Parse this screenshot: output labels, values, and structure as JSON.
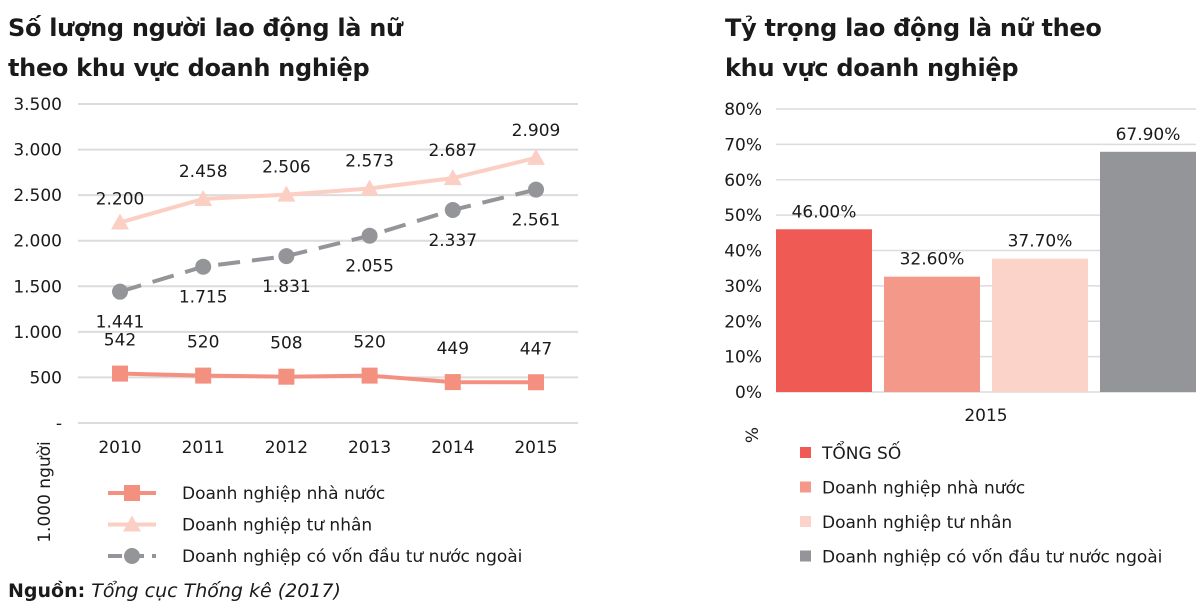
{
  "left_title": [
    "Số lượng người lao động là nữ",
    "theo khu vực doanh nghiệp"
  ],
  "right_title": [
    "Tỷ trọng lao động là nữ theo",
    "khu vực doanh nghiệp"
  ],
  "source": {
    "label": "Nguồn:",
    "text": "Tổng cục Thống kê (2017)"
  },
  "chart_data": [
    {
      "type": "line",
      "title": "Số lượng người lao động là nữ theo khu vực doanh nghiệp",
      "xlabel": "",
      "ylabel": "1.000 người",
      "ylim": [
        0,
        3500
      ],
      "yticks": [
        0,
        500,
        1000,
        1500,
        2000,
        2500,
        3000,
        3500
      ],
      "ytick_labels": [
        "-",
        "500",
        "1.000",
        "1.500",
        "2.000",
        "2.500",
        "3.000",
        "3.500"
      ],
      "grid": true,
      "legend_position": "bottom",
      "categories": [
        "2010",
        "2011",
        "2012",
        "2013",
        "2014",
        "2015"
      ],
      "series": [
        {
          "name": "Doanh nghiệp nhà nước",
          "color": "#f4907f",
          "marker": "square",
          "dashed": false,
          "values": [
            542,
            520,
            508,
            520,
            449,
            447
          ],
          "labels": [
            "542",
            "520",
            "508",
            "520",
            "449",
            "447"
          ]
        },
        {
          "name": "Doanh nghiệp tư nhân",
          "color": "#fbcfc4",
          "marker": "triangle",
          "dashed": false,
          "values": [
            2200,
            2458,
            2506,
            2573,
            2687,
            2909
          ],
          "labels": [
            "2.200",
            "2.458",
            "2.506",
            "2.573",
            "2.687",
            "2.909"
          ]
        },
        {
          "name": "Doanh nghiệp có vốn đầu tư nước ngoài",
          "color": "#939598",
          "marker": "circle",
          "dashed": true,
          "values": [
            1441,
            1715,
            1831,
            2055,
            2337,
            2561
          ],
          "labels": [
            "1.441",
            "1.715",
            "1.831",
            "2.055",
            "2.337",
            "2.561"
          ]
        }
      ]
    },
    {
      "type": "bar",
      "title": "Tỷ trọng lao động là nữ theo khu vực doanh nghiệp",
      "xlabel": "2015",
      "ylabel": "%",
      "ylim": [
        0,
        80
      ],
      "yticks": [
        0,
        10,
        20,
        30,
        40,
        50,
        60,
        70,
        80
      ],
      "ytick_labels": [
        "0%",
        "10%",
        "20%",
        "30%",
        "40%",
        "50%",
        "60%",
        "70%",
        "80%"
      ],
      "grid": true,
      "legend_position": "bottom",
      "categories": [
        "2015"
      ],
      "series": [
        {
          "name": "TỔNG SỐ",
          "color": "#f05a55",
          "values": [
            46.0
          ],
          "labels": [
            "46.00%"
          ]
        },
        {
          "name": "Doanh nghiệp nhà nước",
          "color": "#f4998a",
          "values": [
            32.6
          ],
          "labels": [
            "32.60%"
          ]
        },
        {
          "name": "Doanh nghiệp tư nhân",
          "color": "#fbd3c9",
          "values": [
            37.7
          ],
          "labels": [
            "37.70%"
          ]
        },
        {
          "name": "Doanh nghiệp có vốn đầu tư nước ngoài",
          "color": "#939598",
          "values": [
            67.9
          ],
          "labels": [
            "67.90%"
          ]
        }
      ]
    }
  ]
}
